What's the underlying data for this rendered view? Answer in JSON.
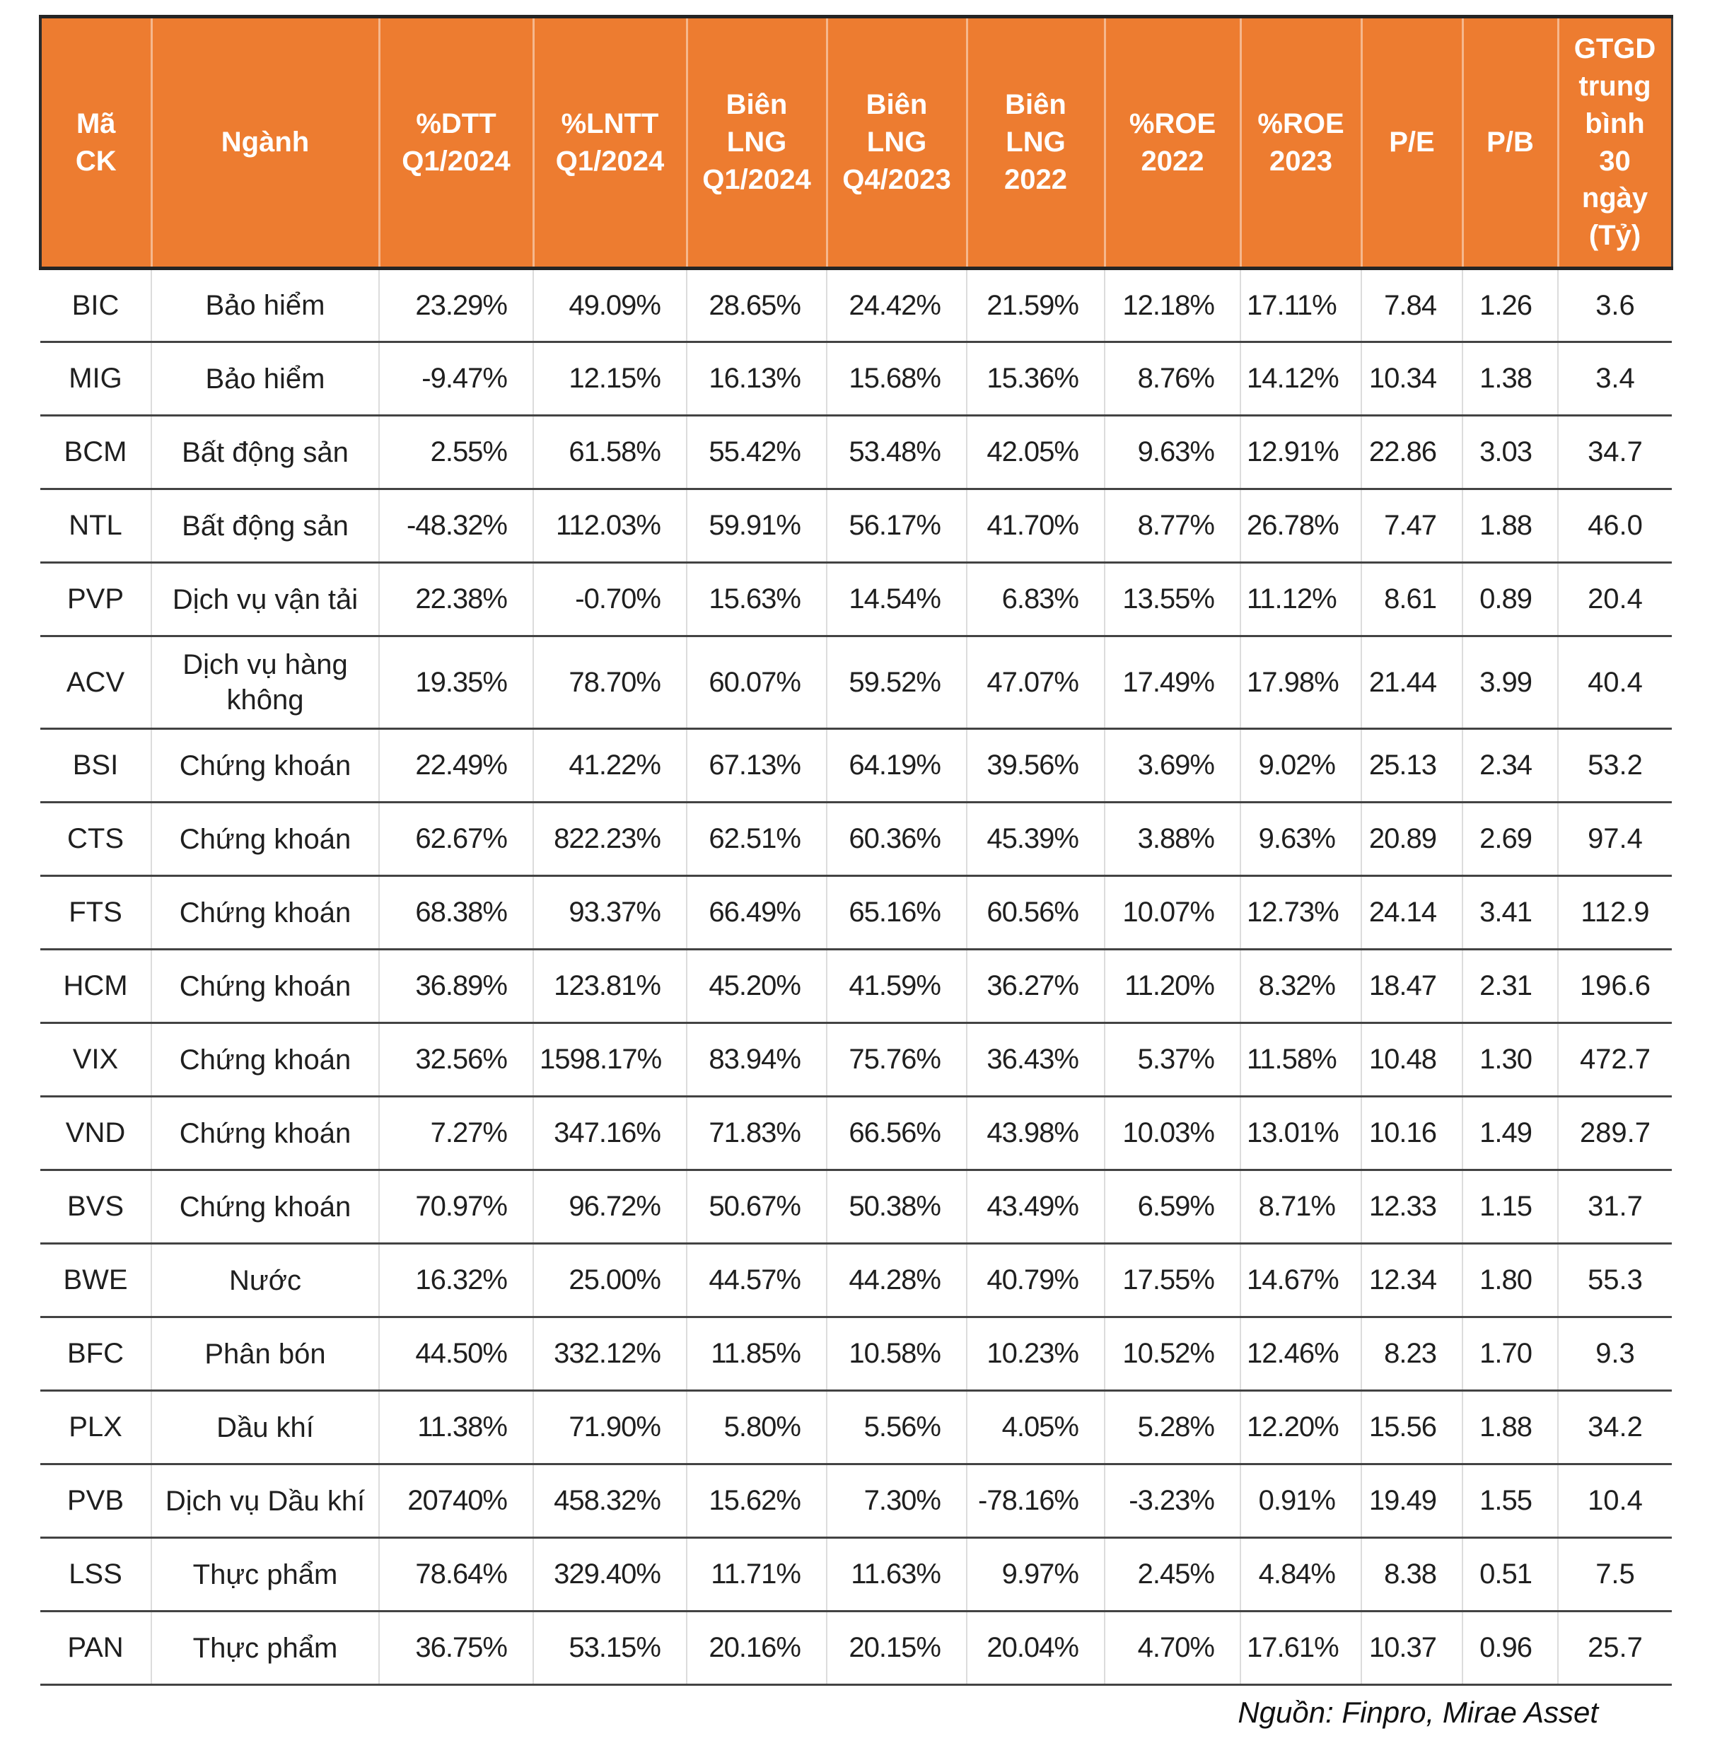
{
  "colors": {
    "header_bg": "#ED7C30",
    "header_text": "#FFFFFF",
    "row_line": "#434343",
    "column_line": "#DCDCDC",
    "body_text": "#1F1F1F"
  },
  "table": {
    "columns": [
      {
        "key": "ma_ck",
        "label": "Mã\nCK"
      },
      {
        "key": "nganh",
        "label": "Ngành"
      },
      {
        "key": "dtt_q1_2024",
        "label": "%DTT\nQ1/2024"
      },
      {
        "key": "lntt_q1_2024",
        "label": "%LNTT\nQ1/2024"
      },
      {
        "key": "bien_lng_q1_2024",
        "label": "Biên\nLNG\nQ1/2024"
      },
      {
        "key": "bien_lng_q4_2023",
        "label": "Biên\nLNG\nQ4/2023"
      },
      {
        "key": "bien_lng_2022",
        "label": "Biên\nLNG\n2022"
      },
      {
        "key": "roe_2022",
        "label": "%ROE\n2022"
      },
      {
        "key": "roe_2023",
        "label": "%ROE\n2023"
      },
      {
        "key": "pe",
        "label": "P/E"
      },
      {
        "key": "pb",
        "label": "P/B"
      },
      {
        "key": "gtgd_30d",
        "label": "GTGD\ntrung\nbình\n30\nngày\n(Tỷ)"
      }
    ],
    "rows": [
      [
        "BIC",
        "Bảo hiểm",
        "23.29%",
        "49.09%",
        "28.65%",
        "24.42%",
        "21.59%",
        "12.18%",
        "17.11%",
        "7.84",
        "1.26",
        "3.6"
      ],
      [
        "MIG",
        "Bảo hiểm",
        "-9.47%",
        "12.15%",
        "16.13%",
        "15.68%",
        "15.36%",
        "8.76%",
        "14.12%",
        "10.34",
        "1.38",
        "3.4"
      ],
      [
        "BCM",
        "Bất động sản",
        "2.55%",
        "61.58%",
        "55.42%",
        "53.48%",
        "42.05%",
        "9.63%",
        "12.91%",
        "22.86",
        "3.03",
        "34.7"
      ],
      [
        "NTL",
        "Bất động sản",
        "-48.32%",
        "112.03%",
        "59.91%",
        "56.17%",
        "41.70%",
        "8.77%",
        "26.78%",
        "7.47",
        "1.88",
        "46.0"
      ],
      [
        "PVP",
        "Dịch vụ vận tải",
        "22.38%",
        "-0.70%",
        "15.63%",
        "14.54%",
        "6.83%",
        "13.55%",
        "11.12%",
        "8.61",
        "0.89",
        "20.4"
      ],
      [
        "ACV",
        "Dịch vụ hàng không",
        "19.35%",
        "78.70%",
        "60.07%",
        "59.52%",
        "47.07%",
        "17.49%",
        "17.98%",
        "21.44",
        "3.99",
        "40.4"
      ],
      [
        "BSI",
        "Chứng khoán",
        "22.49%",
        "41.22%",
        "67.13%",
        "64.19%",
        "39.56%",
        "3.69%",
        "9.02%",
        "25.13",
        "2.34",
        "53.2"
      ],
      [
        "CTS",
        "Chứng khoán",
        "62.67%",
        "822.23%",
        "62.51%",
        "60.36%",
        "45.39%",
        "3.88%",
        "9.63%",
        "20.89",
        "2.69",
        "97.4"
      ],
      [
        "FTS",
        "Chứng khoán",
        "68.38%",
        "93.37%",
        "66.49%",
        "65.16%",
        "60.56%",
        "10.07%",
        "12.73%",
        "24.14",
        "3.41",
        "112.9"
      ],
      [
        "HCM",
        "Chứng khoán",
        "36.89%",
        "123.81%",
        "45.20%",
        "41.59%",
        "36.27%",
        "11.20%",
        "8.32%",
        "18.47",
        "2.31",
        "196.6"
      ],
      [
        "VIX",
        "Chứng khoán",
        "32.56%",
        "1598.17%",
        "83.94%",
        "75.76%",
        "36.43%",
        "5.37%",
        "11.58%",
        "10.48",
        "1.30",
        "472.7"
      ],
      [
        "VND",
        "Chứng khoán",
        "7.27%",
        "347.16%",
        "71.83%",
        "66.56%",
        "43.98%",
        "10.03%",
        "13.01%",
        "10.16",
        "1.49",
        "289.7"
      ],
      [
        "BVS",
        "Chứng khoán",
        "70.97%",
        "96.72%",
        "50.67%",
        "50.38%",
        "43.49%",
        "6.59%",
        "8.71%",
        "12.33",
        "1.15",
        "31.7"
      ],
      [
        "BWE",
        "Nước",
        "16.32%",
        "25.00%",
        "44.57%",
        "44.28%",
        "40.79%",
        "17.55%",
        "14.67%",
        "12.34",
        "1.80",
        "55.3"
      ],
      [
        "BFC",
        "Phân bón",
        "44.50%",
        "332.12%",
        "11.85%",
        "10.58%",
        "10.23%",
        "10.52%",
        "12.46%",
        "8.23",
        "1.70",
        "9.3"
      ],
      [
        "PLX",
        "Dầu khí",
        "11.38%",
        "71.90%",
        "5.80%",
        "5.56%",
        "4.05%",
        "5.28%",
        "12.20%",
        "15.56",
        "1.88",
        "34.2"
      ],
      [
        "PVB",
        "Dịch vụ Dầu khí",
        "20740%",
        "458.32%",
        "15.62%",
        "7.30%",
        "-78.16%",
        "-3.23%",
        "0.91%",
        "19.49",
        "1.55",
        "10.4"
      ],
      [
        "LSS",
        "Thực phẩm",
        "78.64%",
        "329.40%",
        "11.71%",
        "11.63%",
        "9.97%",
        "2.45%",
        "4.84%",
        "8.38",
        "0.51",
        "7.5"
      ],
      [
        "PAN",
        "Thực phẩm",
        "36.75%",
        "53.15%",
        "20.16%",
        "20.15%",
        "20.04%",
        "4.70%",
        "17.61%",
        "10.37",
        "0.96",
        "25.7"
      ]
    ]
  },
  "footer": {
    "source": "Nguồn: Finpro, Mirae Asset"
  }
}
